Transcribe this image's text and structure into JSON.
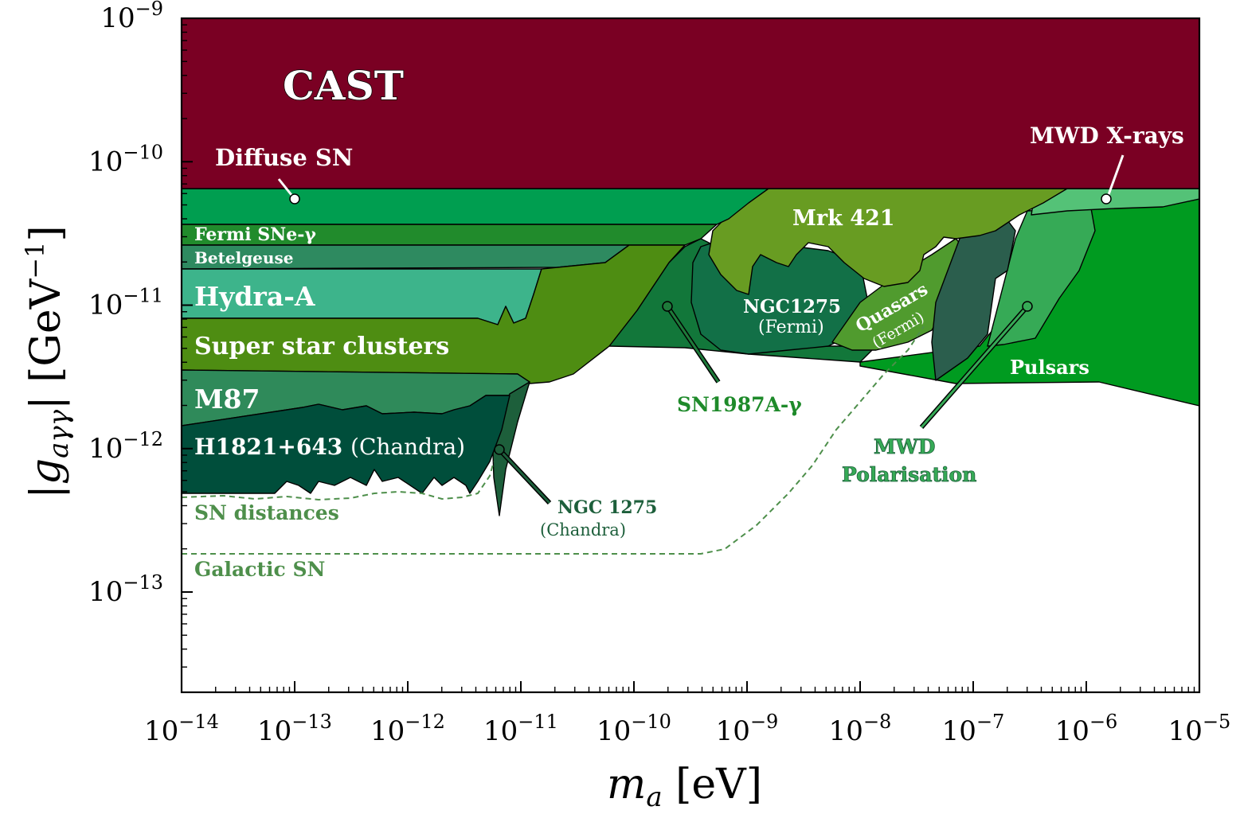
{
  "chart_data": {
    "type": "area",
    "xlabel": "m_a [eV]",
    "ylabel": "|g_aγγ| [GeV^-1]",
    "xscale": "log",
    "yscale": "log",
    "xlim": [
      1e-14,
      1e-05
    ],
    "ylim": [
      2e-14,
      1e-09
    ],
    "xticks": [
      "10^-14",
      "10^-13",
      "10^-12",
      "10^-11",
      "10^-10",
      "10^-9",
      "10^-8",
      "10^-7",
      "10^-6",
      "10^-5"
    ],
    "yticks": [
      "10^-13",
      "10^-12",
      "10^-11",
      "10^-10",
      "10^-9"
    ],
    "grid": false,
    "regions": [
      {
        "name": "CAST",
        "label": "CAST",
        "color": "#7a0023",
        "x": [
          1e-14,
          1e-05,
          1e-05,
          1e-14
        ],
        "y": [
          1e-09,
          1e-09,
          6.6e-11,
          6.6e-11
        ]
      },
      {
        "name": "Diffuse SN",
        "label": "Diffuse SN",
        "color": "#009e50",
        "x": [
          1e-14,
          1e-09,
          1e-09,
          1e-14
        ],
        "y": [
          6.6e-11,
          6.6e-11,
          3.8e-11,
          3.8e-11
        ]
      },
      {
        "name": "MWD X-rays",
        "label": "MWD X-rays",
        "color": "#54c277",
        "x": [
          3e-08,
          1e-05,
          1e-05,
          1e-06,
          3e-07,
          1e-07,
          5e-08
        ],
        "y": [
          6.6e-11,
          6.6e-11,
          5.3e-11,
          4.2e-11,
          4.3e-11,
          4.4e-11,
          4.6e-11
        ]
      },
      {
        "name": "Fermi SNe-γ",
        "label": "Fermi SNe-γ",
        "color": "#218b2c",
        "x": [
          1e-14,
          6e-10,
          6e-10,
          1e-14
        ],
        "y": [
          3.8e-11,
          3.8e-11,
          2.6e-11,
          2.6e-11
        ]
      },
      {
        "name": "Betelgeuse",
        "label": "Betelgeuse",
        "color": "#2e8a60",
        "x": [
          1e-14,
          4e-12,
          4e-12,
          1e-14
        ],
        "y": [
          2.6e-11,
          2.6e-11,
          1.8e-11,
          1.8e-11
        ]
      },
      {
        "name": "Hydra-A",
        "label": "Hydra-A",
        "color": "#3db48b",
        "x": [
          1e-14,
          1.2e-11,
          1.2e-11,
          1e-14
        ],
        "y": [
          1.8e-11,
          1.8e-11,
          8e-12,
          8e-12
        ]
      },
      {
        "name": "Super star clusters",
        "label": "Super star clusters",
        "color": "#4e8d12",
        "x": [
          1e-14,
          3e-10,
          3e-10,
          1e-14
        ],
        "y": [
          8e-12,
          8e-12,
          3.6e-12,
          3.6e-12
        ]
      },
      {
        "name": "Pulsars",
        "label": "Pulsars",
        "color": "#009b20",
        "x": [
          1e-08,
          1e-05,
          1e-05,
          1e-08
        ],
        "y": [
          5.3e-11,
          5.3e-11,
          2e-12,
          5.3e-12
        ]
      },
      {
        "name": "MWD Polarisation",
        "label": "MWD Polarisation",
        "color": "#36aa56",
        "x": [
          1e-07,
          1e-06,
          1e-06,
          1e-07
        ],
        "y": [
          4.5e-11,
          4.5e-11,
          5.3e-12,
          5.3e-12
        ]
      },
      {
        "name": "SN1987A-γ",
        "label": "SN1987A-γ",
        "color": "#12773a",
        "x": [
          1e-10,
          3e-09,
          3e-09,
          1e-10
        ],
        "y": [
          2.6e-11,
          2.6e-11,
          5.3e-12,
          5.3e-12
        ]
      },
      {
        "name": "NGC1275 (Fermi)",
        "label": "NGC1275",
        "sublabel": "(Fermi)",
        "color": "#127047",
        "x": [
          4e-10,
          1e-08,
          1e-08,
          4e-10
        ],
        "y": [
          2.6e-11,
          2.6e-11,
          5e-12,
          5e-12
        ]
      },
      {
        "name": "Mrk 421",
        "label": "Mrk 421",
        "color": "#689c22",
        "x": [
          5e-10,
          3e-07,
          3e-07,
          5e-10
        ],
        "y": [
          6.6e-11,
          6.6e-11,
          1.5e-11,
          1.5e-11
        ]
      },
      {
        "name": "Quasars (Fermi)",
        "label": "Quasars",
        "sublabel": "(Fermi)",
        "color": "#509b2e",
        "x": [
          5e-09,
          5e-08,
          5e-08,
          5e-09
        ],
        "y": [
          2.5e-11,
          2.5e-11,
          4.5e-12,
          4.5e-12
        ]
      },
      {
        "name": "M87",
        "label": "M87",
        "color": "#2f8a5a",
        "x": [
          1e-14,
          8e-12,
          8e-12,
          1e-14
        ],
        "y": [
          3.6e-12,
          3.6e-12,
          1.5e-12,
          1.5e-12
        ]
      },
      {
        "name": "H1821+643 (Chandra)",
        "label": "H1821+643",
        "sublabel": "(Chandra)",
        "color": "#004e3b",
        "x": [
          1e-14,
          6e-12,
          6e-12,
          1e-14
        ],
        "y": [
          1.5e-12,
          1.5e-12,
          5e-13,
          5e-13
        ]
      },
      {
        "name": "NGC 1275 (Chandra)",
        "label": "NGC 1275",
        "sublabel": "(Chandra)",
        "color": "#1d5f3b",
        "x": [
          5e-12,
          8e-12,
          6e-12
        ],
        "y": [
          3e-12,
          3e-12,
          3.5e-13
        ]
      }
    ],
    "projections": [
      {
        "name": "SN distances",
        "label": "SN distances",
        "style": "dashed",
        "color": "#4e8f4b"
      },
      {
        "name": "Galactic SN",
        "label": "Galactic SN",
        "style": "dashed",
        "color": "#4e8f4b"
      }
    ]
  }
}
